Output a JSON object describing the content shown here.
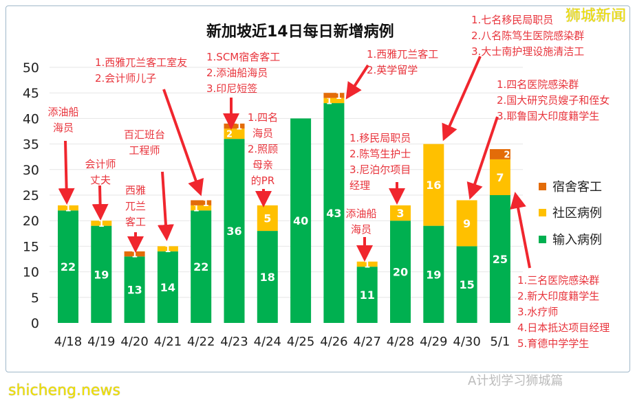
{
  "chart_data": {
    "type": "bar",
    "stacked": true,
    "title": "新加坡近14日每日新增病例",
    "categories": [
      "4/18",
      "4/19",
      "4/20",
      "4/21",
      "4/22",
      "4/23",
      "4/24",
      "4/25",
      "4/26",
      "4/27",
      "4/28",
      "4/29",
      "4/30",
      "5/1"
    ],
    "series": [
      {
        "name": "输入病例",
        "color": "#00b050",
        "values": [
          22,
          19,
          13,
          14,
          22,
          36,
          18,
          40,
          43,
          11,
          20,
          19,
          15,
          25
        ]
      },
      {
        "name": "社区病例",
        "color": "#ffc000",
        "values": [
          1,
          1,
          0,
          1,
          1,
          2,
          5,
          0,
          1,
          1,
          3,
          16,
          9,
          7
        ]
      },
      {
        "name": "宿舍客工",
        "color": "#e36c09",
        "values": [
          0,
          0,
          1,
          0,
          1,
          1,
          0,
          0,
          1,
          0,
          0,
          0,
          0,
          2
        ]
      }
    ],
    "yticks": [
      "0",
      "5",
      "10",
      "15",
      "20",
      "25",
      "30",
      "35",
      "40",
      "45",
      "50"
    ],
    "ylim": [
      0,
      50
    ],
    "grid": true,
    "legend": "right",
    "annotations": [
      {
        "lines": [
          "添油船",
          "海员"
        ]
      },
      {
        "lines": [
          "会计师",
          "丈夫"
        ]
      },
      {
        "lines": [
          "西雅",
          "兀兰",
          "客工"
        ]
      },
      {
        "lines": [
          "百汇班台",
          "工程师"
        ]
      },
      {
        "lines": [
          "1.西雅兀兰客工室友",
          "2.会计师儿子"
        ]
      },
      {
        "lines": [
          "1.SCM宿舍客工",
          "2.添油船海员",
          "3.印尼短签"
        ]
      },
      {
        "lines": [
          "1.四名",
          "海员",
          "2.照顾",
          "母亲",
          "的PR"
        ]
      },
      {
        "lines": [
          "1.西雅兀兰客工",
          "2.英学留学"
        ]
      },
      {
        "lines": [
          "1.移民局职员",
          "2.陈笃生护士",
          "3.尼泊尔项目",
          "经理"
        ]
      },
      {
        "lines": [
          "添油船",
          "海员"
        ]
      },
      {
        "lines": [
          "1.七名移民局职员",
          "2.八名陈笃生医院感染群",
          "3.大士南护理设施清洁工"
        ]
      },
      {
        "lines": [
          "1.四名医院感染群",
          "2.国大研究员嫂子和侄女",
          "3.耶鲁国大印度籍学生"
        ]
      },
      {
        "lines": [
          "1.三名医院感染群",
          "2.新大印度籍学生",
          "3.水疗师",
          "4.日本抵达项目经理",
          "5.育德中学学生"
        ]
      }
    ]
  },
  "watermarks": {
    "top": "狮城新闻",
    "bottom": "shicheng.news",
    "wechat": "A计划学习狮城篇"
  }
}
